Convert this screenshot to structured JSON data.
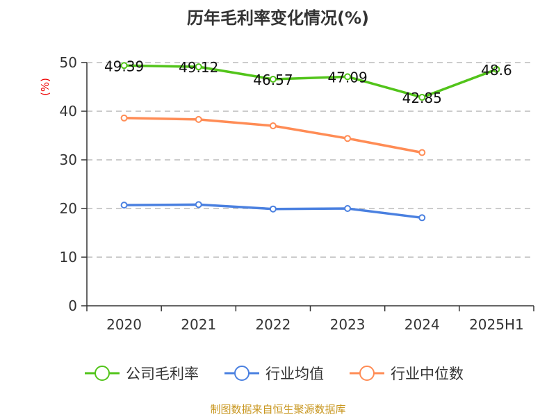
{
  "chart_data": {
    "type": "line",
    "title": "历年毛利率变化情况(%)",
    "ylabel": "(%)",
    "categories": [
      "2020",
      "2021",
      "2022",
      "2023",
      "2024",
      "2025H1"
    ],
    "ylim": [
      0,
      50
    ],
    "yticks": [
      0,
      10,
      20,
      30,
      40,
      50
    ],
    "grid": true,
    "legend": "bottom",
    "series": [
      {
        "name": "公司毛利率",
        "color": "#52c41a",
        "values": [
          49.39,
          49.12,
          46.57,
          47.09,
          42.85,
          48.6
        ],
        "labels": [
          "49.39",
          "49.12",
          "46.57",
          "47.09",
          "42.85",
          "48.6"
        ]
      },
      {
        "name": "行业均值",
        "color": "#4a80e0",
        "values": [
          20.7,
          20.8,
          19.9,
          20.0,
          18.1,
          null
        ]
      },
      {
        "name": "行业中位数",
        "color": "#ff8c55",
        "values": [
          38.6,
          38.3,
          37.0,
          34.4,
          31.5,
          null
        ]
      }
    ]
  },
  "source": "制图数据来自恒生聚源数据库"
}
